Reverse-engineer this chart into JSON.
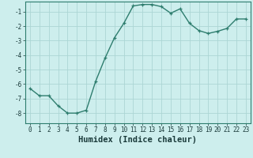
{
  "xlabel": "Humidex (Indice chaleur)",
  "x": [
    0,
    1,
    2,
    3,
    4,
    5,
    6,
    7,
    8,
    9,
    10,
    11,
    12,
    13,
    14,
    15,
    16,
    17,
    18,
    19,
    20,
    21,
    22,
    23
  ],
  "y": [
    -6.3,
    -6.8,
    -6.8,
    -7.5,
    -8.0,
    -8.0,
    -7.8,
    -5.8,
    -4.2,
    -2.8,
    -1.8,
    -0.6,
    -0.5,
    -0.5,
    -0.65,
    -1.1,
    -0.8,
    -1.8,
    -2.3,
    -2.5,
    -2.35,
    -2.15,
    -1.5,
    -1.5
  ],
  "line_color": "#2e7d6e",
  "marker": "+",
  "marker_size": 3.5,
  "bg_color": "#cdeeed",
  "grid_color": "#acd6d4",
  "xlim": [
    -0.5,
    23.5
  ],
  "ylim": [
    -8.7,
    -0.3
  ],
  "yticks": [
    -8,
    -7,
    -6,
    -5,
    -4,
    -3,
    -2,
    -1
  ],
  "xtick_labels": [
    "0",
    "1",
    "2",
    "3",
    "4",
    "5",
    "6",
    "7",
    "8",
    "9",
    "10",
    "11",
    "12",
    "13",
    "14",
    "15",
    "16",
    "17",
    "18",
    "19",
    "20",
    "21",
    "22",
    "23"
  ],
  "tick_fontsize": 5.5,
  "label_fontsize": 7.5,
  "line_width": 1.0
}
